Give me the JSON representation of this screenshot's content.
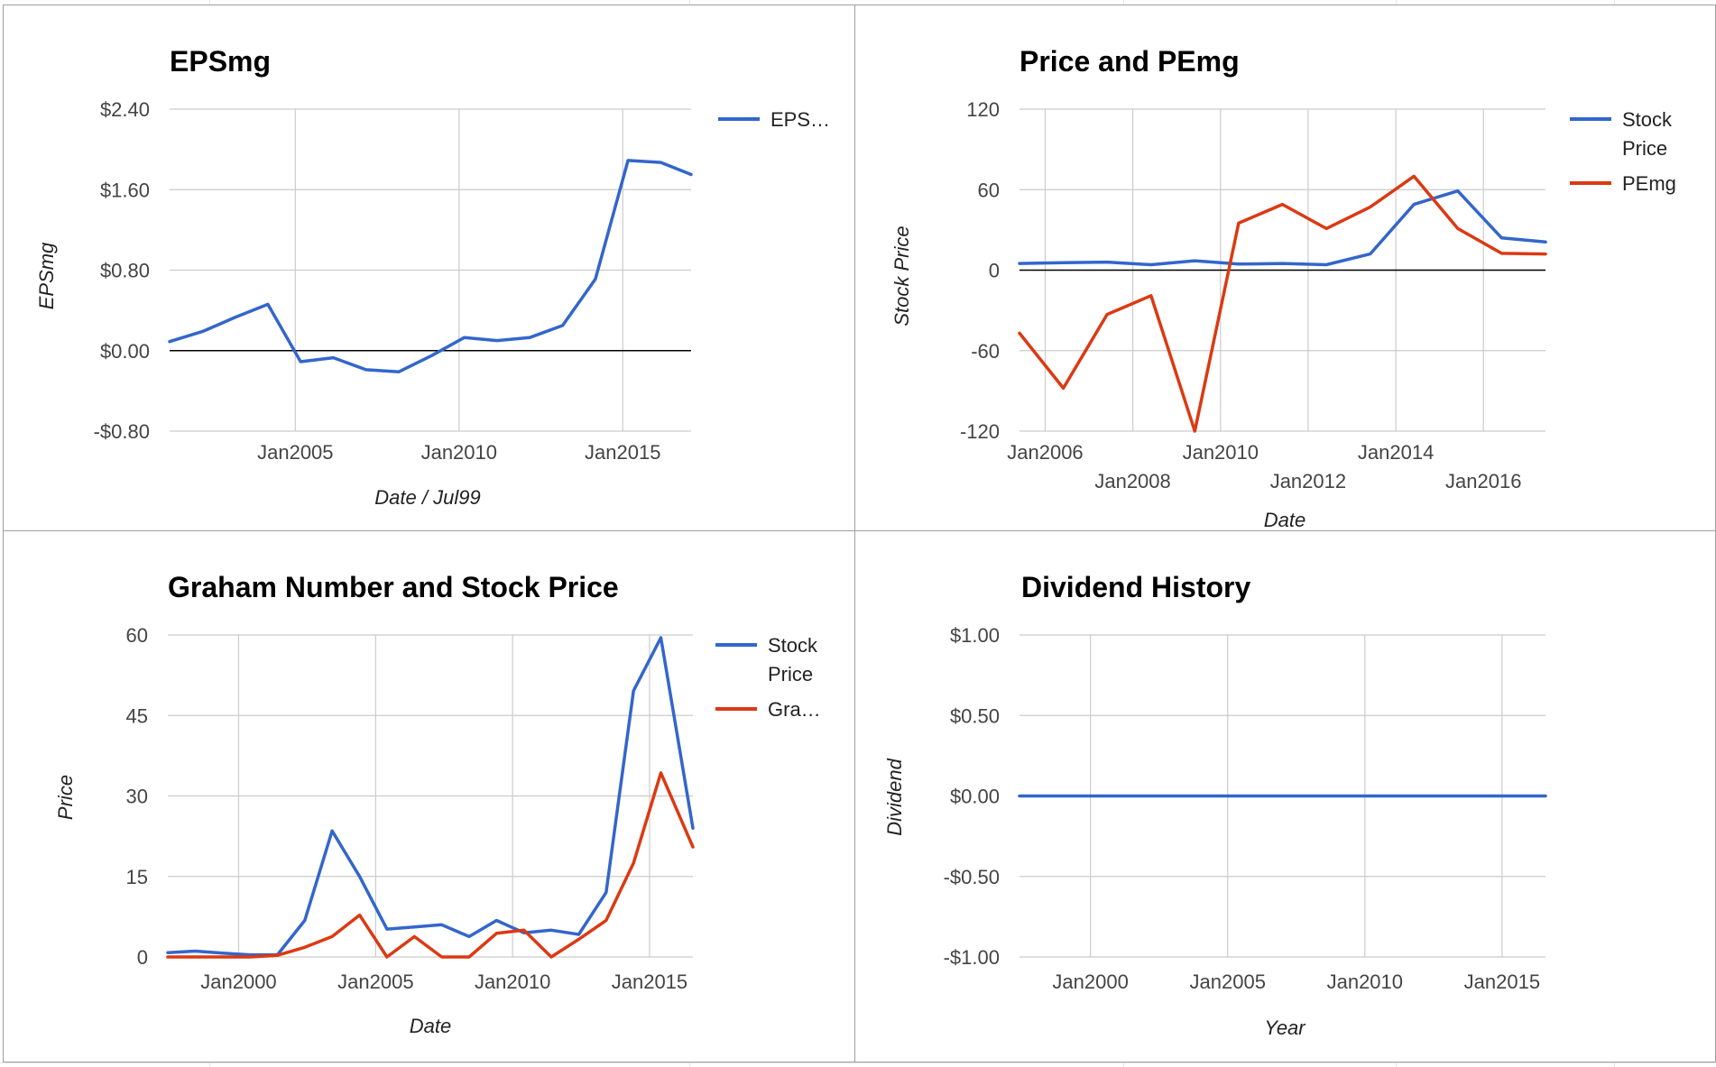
{
  "colors": {
    "stock": "#3366cc",
    "red": "#dc3912",
    "grid": "#cccccc",
    "zero": "#000000"
  },
  "chart_data": [
    {
      "type": "line",
      "title": "EPSmg",
      "xlabel": "Date / Jul99",
      "ylabel": "EPSmg",
      "ylim": [
        -0.8,
        2.4
      ],
      "yticks": [
        -0.8,
        0,
        0.8,
        1.6,
        2.4
      ],
      "ytick_labels": [
        "-$0.80",
        "$0.00",
        "$0.80",
        "$1.60",
        "$2.40"
      ],
      "xlim": [
        "2001-03-01",
        "2017-02-01"
      ],
      "xticks": [
        "2005-01-01",
        "2010-01-01",
        "2015-01-01"
      ],
      "xtick_labels": [
        "Jan2005",
        "Jan2010",
        "Jan2015"
      ],
      "grid": true,
      "legend": {
        "position": "right",
        "entries": [
          "EPS…"
        ]
      },
      "series": [
        {
          "name": "EPS…",
          "color": "#3366cc",
          "x": [
            "2001-03-01",
            "2002-03-01",
            "2003-03-01",
            "2004-03-01",
            "2005-03-01",
            "2006-03-01",
            "2007-03-01",
            "2008-03-01",
            "2009-03-01",
            "2010-03-01",
            "2011-03-01",
            "2012-03-01",
            "2013-03-01",
            "2014-03-01",
            "2015-03-01",
            "2016-03-01",
            "2017-02-01"
          ],
          "y": [
            0.09,
            0.19,
            0.33,
            0.46,
            -0.11,
            -0.07,
            -0.19,
            -0.21,
            -0.05,
            0.13,
            0.1,
            0.13,
            0.25,
            0.71,
            1.89,
            1.87,
            1.75
          ]
        }
      ]
    },
    {
      "type": "line",
      "title": "Price and PEmg",
      "xlabel": "Date",
      "ylabel": "Stock Price",
      "ylim": [
        -120,
        120
      ],
      "yticks": [
        -120,
        -60,
        0,
        60,
        120
      ],
      "ytick_labels": [
        "-120",
        "-60",
        "0",
        "60",
        "120"
      ],
      "xlim": [
        "2005-06-01",
        "2017-06-01"
      ],
      "xticks": [
        "2006-01-01",
        "2008-01-01",
        "2010-01-01",
        "2012-01-01",
        "2014-01-01",
        "2016-01-01"
      ],
      "xtick_labels": [
        "Jan2006",
        "Jan2008",
        "Jan2010",
        "Jan2012",
        "Jan2014",
        "Jan2016"
      ],
      "grid": true,
      "legend": {
        "position": "right",
        "entries": [
          "Stock Price",
          "PEmg"
        ]
      },
      "series": [
        {
          "name": "Stock Price",
          "color": "#3366cc",
          "x": [
            "2005-06-01",
            "2006-06-01",
            "2007-06-01",
            "2008-06-01",
            "2009-06-01",
            "2010-06-01",
            "2011-06-01",
            "2012-06-01",
            "2013-06-01",
            "2014-06-01",
            "2015-06-01",
            "2016-06-01",
            "2017-06-01"
          ],
          "y": [
            5,
            5.5,
            6,
            4,
            7,
            4.5,
            5,
            4,
            12,
            49,
            59,
            24,
            21
          ]
        },
        {
          "name": "PEmg",
          "color": "#dc3912",
          "x": [
            "2005-06-01",
            "2006-06-01",
            "2007-06-01",
            "2008-06-01",
            "2009-06-01",
            "2010-06-01",
            "2011-06-01",
            "2012-06-01",
            "2013-06-01",
            "2014-06-01",
            "2015-06-01",
            "2016-06-01",
            "2017-06-01"
          ],
          "y": [
            -47,
            -88,
            -33,
            -19,
            -120,
            35,
            49,
            31,
            47,
            70,
            31,
            12.5,
            12
          ]
        }
      ]
    },
    {
      "type": "line",
      "title": "Graham Number and Stock Price",
      "xlabel": "Date",
      "ylabel": "Price",
      "ylim": [
        0,
        60
      ],
      "yticks": [
        0,
        15,
        30,
        45,
        60
      ],
      "ytick_labels": [
        "0",
        "15",
        "30",
        "45",
        "60"
      ],
      "xlim": [
        "1997-06-01",
        "2016-08-01"
      ],
      "xticks": [
        "2000-01-01",
        "2005-01-01",
        "2010-01-01",
        "2015-01-01"
      ],
      "xtick_labels": [
        "Jan2000",
        "Jan2005",
        "Jan2010",
        "Jan2015"
      ],
      "grid": true,
      "legend": {
        "position": "right",
        "entries": [
          "Stock Price",
          "Gra…"
        ]
      },
      "series": [
        {
          "name": "Stock Price",
          "color": "#3366cc",
          "x": [
            "1997-06-01",
            "1998-06-01",
            "1999-06-01",
            "2000-06-01",
            "2001-06-01",
            "2002-06-01",
            "2003-06-01",
            "2004-06-01",
            "2005-06-01",
            "2006-06-01",
            "2007-06-01",
            "2008-06-01",
            "2009-06-01",
            "2010-06-01",
            "2011-06-01",
            "2012-06-01",
            "2013-06-01",
            "2014-06-01",
            "2015-06-01",
            "2016-08-01"
          ],
          "y": [
            0.8,
            1.1,
            0.7,
            0.4,
            0.4,
            6.8,
            23.5,
            15,
            5.2,
            5.6,
            6,
            3.8,
            6.8,
            4.5,
            5,
            4.2,
            12,
            49.6,
            59.5,
            24
          ]
        },
        {
          "name": "Gra…",
          "color": "#dc3912",
          "x": [
            "1997-06-01",
            "1998-06-01",
            "1999-06-01",
            "2000-06-01",
            "2001-06-01",
            "2002-06-01",
            "2003-06-01",
            "2004-06-01",
            "2005-06-01",
            "2006-06-01",
            "2007-06-01",
            "2008-06-01",
            "2009-06-01",
            "2010-06-01",
            "2011-06-01",
            "2012-06-01",
            "2013-06-01",
            "2014-06-01",
            "2015-06-01",
            "2016-08-01"
          ],
          "y": [
            0,
            0,
            0,
            0,
            0.3,
            1.8,
            3.8,
            7.8,
            0,
            3.8,
            0,
            0,
            4.4,
            5,
            0,
            3.3,
            6.8,
            17.5,
            34.3,
            20.5
          ]
        }
      ]
    },
    {
      "type": "line",
      "title": "Dividend History",
      "xlabel": "Year",
      "ylabel": "Dividend",
      "ylim": [
        -1,
        1
      ],
      "yticks": [
        -1,
        -0.5,
        0,
        0.5,
        1
      ],
      "ytick_labels": [
        "-$1.00",
        "-$0.50",
        "$0.00",
        "$0.50",
        "$1.00"
      ],
      "xlim": [
        "1997-06-01",
        "2016-08-01"
      ],
      "xticks": [
        "2000-01-01",
        "2005-01-01",
        "2010-01-01",
        "2015-01-01"
      ],
      "xtick_labels": [
        "Jan2000",
        "Jan2005",
        "Jan2010",
        "Jan2015"
      ],
      "grid": true,
      "legend": {
        "position": "none",
        "entries": []
      },
      "series": [
        {
          "name": "",
          "color": "#3366cc",
          "x": [
            "1997-06-01",
            "2016-08-01"
          ],
          "y": [
            0,
            0
          ]
        }
      ]
    }
  ]
}
